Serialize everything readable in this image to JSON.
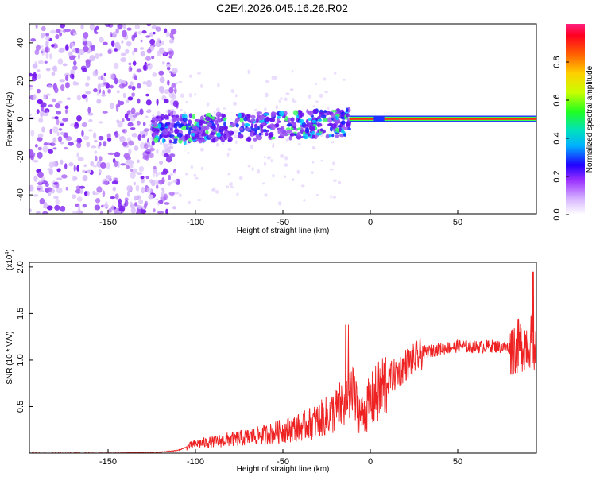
{
  "title": "C2E4.2026.045.16.26.R02",
  "chart_data": [
    {
      "type": "heatmap",
      "xlabel": "Height of straight line (km)",
      "ylabel": "Frequency (Hz)",
      "xlim": [
        -195,
        95
      ],
      "ylim": [
        -50,
        50
      ],
      "xticks": [
        -150,
        -100,
        -50,
        0,
        50
      ],
      "yticks": [
        -40,
        -20,
        0,
        20,
        40
      ],
      "colorbar": {
        "label": "Normalized spectral amplitude",
        "range": [
          0,
          1
        ],
        "ticks": [
          0.0,
          0.2,
          0.4,
          0.6,
          0.8
        ]
      },
      "description_points": {
        "noise_region_x": [
          -195,
          -125
        ],
        "broadband_region_x": [
          -125,
          -12
        ],
        "tone_region_x": [
          -12,
          95
        ],
        "tone_frequency_hz": 0
      }
    },
    {
      "type": "line",
      "xlabel": "Height of straight line (km)",
      "ylabel": "SNR (10 * V/V)",
      "yscale_label": "(x10",
      "yscale_exp": "4",
      "xlim": [
        -195,
        95
      ],
      "ylim": [
        0,
        2.05
      ],
      "xticks": [
        -150,
        -100,
        -50,
        0,
        50
      ],
      "yticks": [
        0.5,
        1.0,
        1.5,
        2.0
      ],
      "series": [
        {
          "name": "SNR",
          "color": "#ee2222",
          "x": [
            -195,
            -150,
            -120,
            -110,
            -100,
            -90,
            -80,
            -70,
            -60,
            -50,
            -40,
            -30,
            -20,
            -15,
            -10,
            -5,
            0,
            5,
            10,
            15,
            20,
            25,
            30,
            40,
            50,
            60,
            70,
            80,
            85,
            90,
            93,
            95
          ],
          "y": [
            0.0,
            0.0,
            0.01,
            0.03,
            0.1,
            0.12,
            0.15,
            0.17,
            0.2,
            0.24,
            0.28,
            0.35,
            0.45,
            0.55,
            0.6,
            0.4,
            0.55,
            0.65,
            0.8,
            0.85,
            0.95,
            1.0,
            1.08,
            1.12,
            1.15,
            1.14,
            1.15,
            1.13,
            1.15,
            1.2,
            1.2,
            1.0
          ]
        }
      ]
    }
  ]
}
